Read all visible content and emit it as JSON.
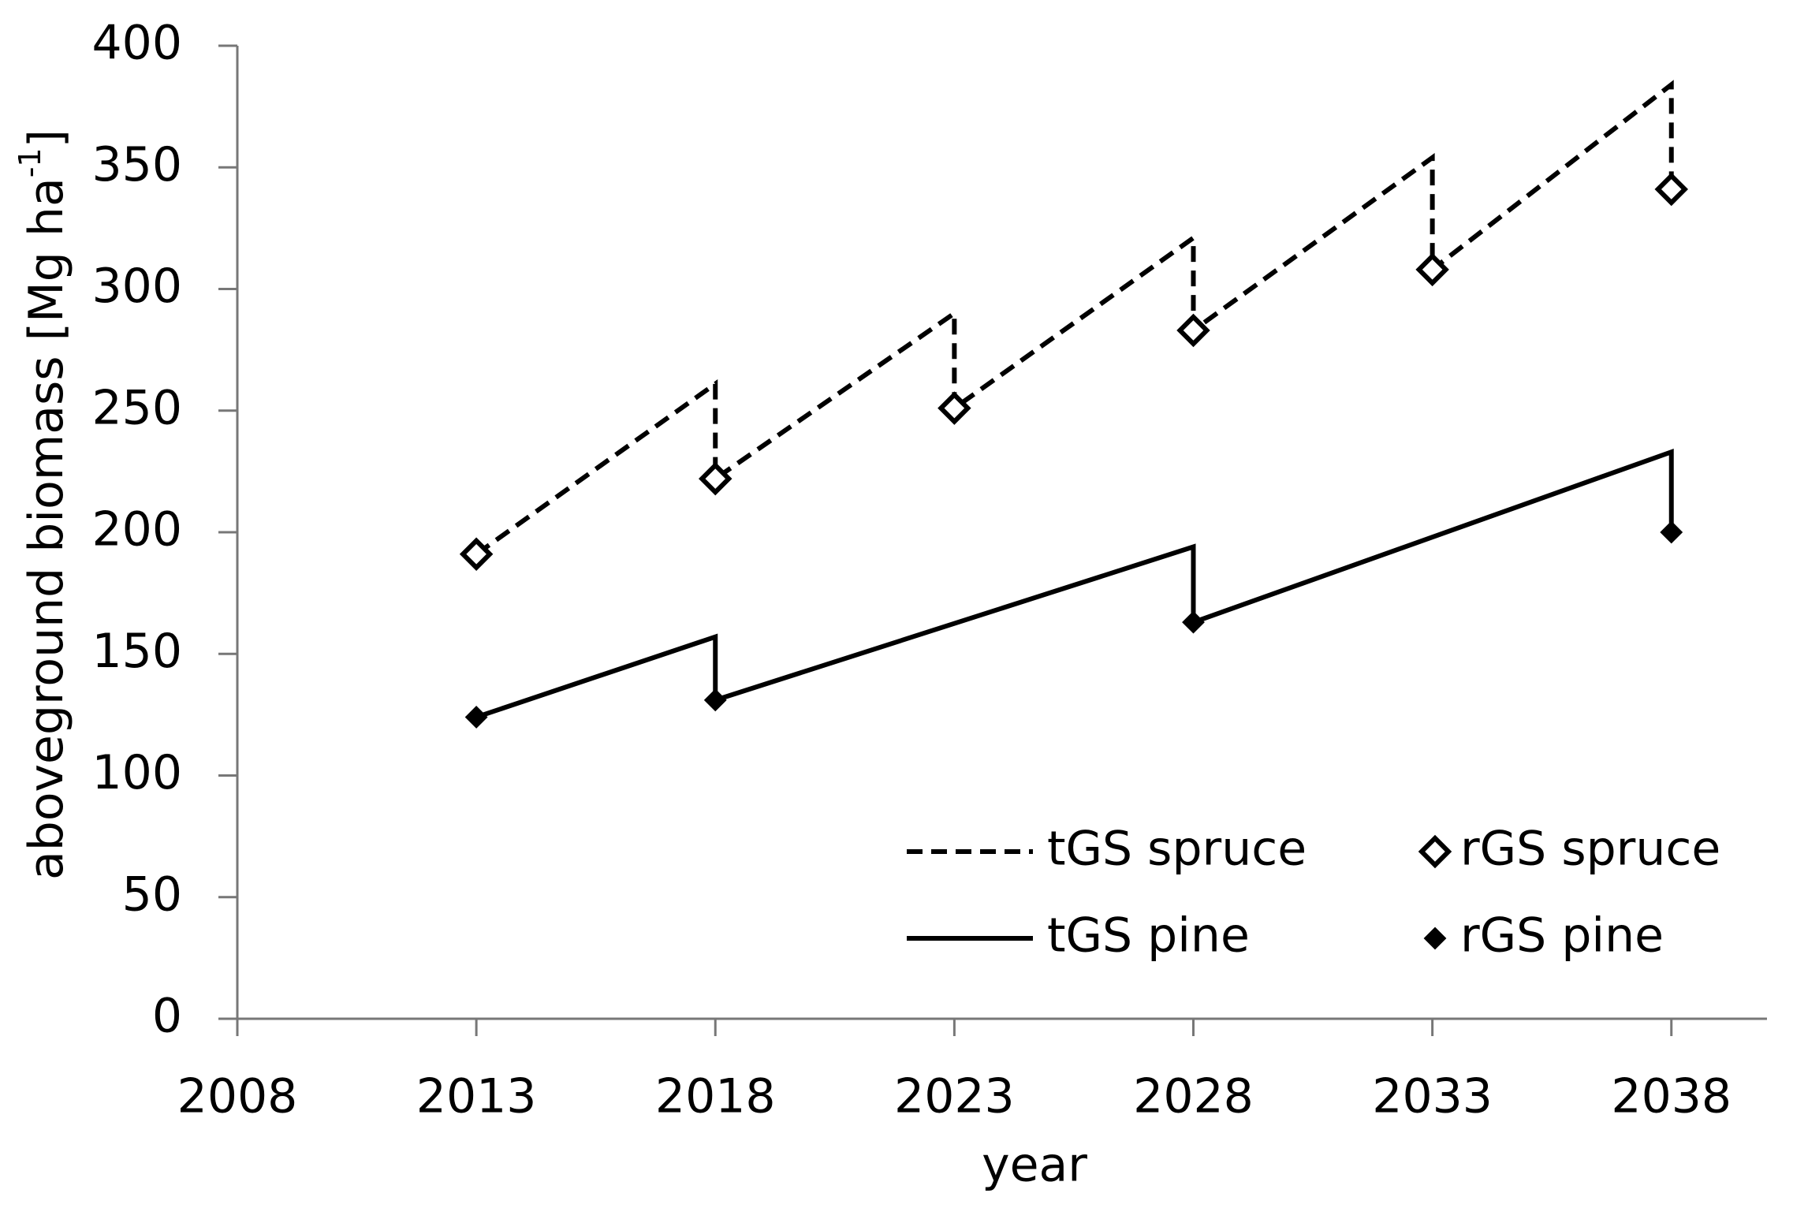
{
  "chart_data": {
    "type": "line",
    "x_label": "year",
    "y_label": {
      "text": "aboveground biomass [Mg ha",
      "superscript": "-1",
      "suffix": "]"
    },
    "xlim": [
      2008,
      2040
    ],
    "xticks": [
      2008,
      2013,
      2018,
      2023,
      2028,
      2033,
      2038
    ],
    "ylim": [
      0,
      400
    ],
    "yticks": [
      0,
      50,
      100,
      150,
      200,
      250,
      300,
      350,
      400
    ],
    "grid": false,
    "series": [
      {
        "name": "tGS spruce",
        "style": "dashed",
        "color": "#000000",
        "x": [
          2013,
          2018,
          2018,
          2023,
          2023,
          2028,
          2028,
          2033,
          2033,
          2038,
          2038
        ],
        "values": [
          191,
          261,
          222,
          290,
          251,
          321,
          283,
          354,
          308,
          384,
          341
        ]
      },
      {
        "name": "tGS pine",
        "style": "solid",
        "color": "#000000",
        "x": [
          2013,
          2018,
          2018,
          2028,
          2028,
          2038,
          2038
        ],
        "values": [
          124,
          157,
          131,
          194,
          163,
          233,
          200
        ]
      },
      {
        "name": "rGS spruce",
        "style": "open-diamond",
        "color": "#000000",
        "x": [
          2013,
          2018,
          2023,
          2028,
          2033,
          2038
        ],
        "values": [
          191,
          222,
          251,
          283,
          308,
          341
        ]
      },
      {
        "name": "rGS pine",
        "style": "filled-diamond",
        "color": "#000000",
        "x": [
          2013,
          2018,
          2028,
          2038
        ],
        "values": [
          124,
          131,
          163,
          200
        ]
      }
    ]
  }
}
